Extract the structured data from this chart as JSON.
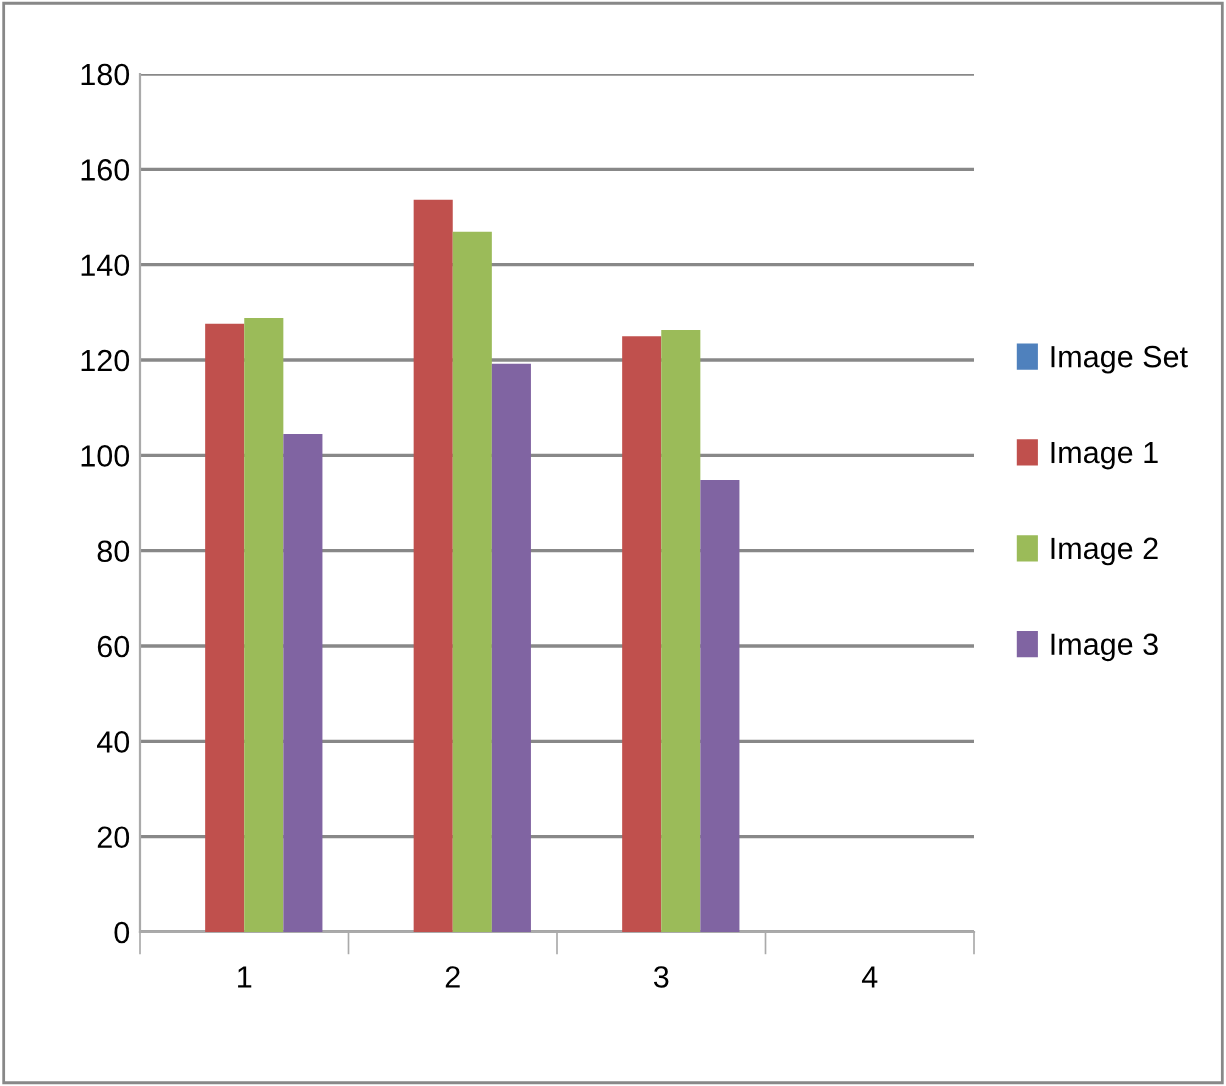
{
  "chart_data": {
    "type": "bar",
    "categories": [
      "1",
      "2",
      "3",
      "4"
    ],
    "series": [
      {
        "name": "Image Set",
        "color": "#4f81bd",
        "values": [
          null,
          null,
          null,
          null
        ]
      },
      {
        "name": "Image 1",
        "color": "#c0504d",
        "values": [
          127.6,
          153.6,
          125.0,
          null
        ]
      },
      {
        "name": "Image 2",
        "color": "#9bbb59",
        "values": [
          128.8,
          146.9,
          126.3,
          null
        ]
      },
      {
        "name": "Image 3",
        "color": "#8064a2",
        "values": [
          104.5,
          119.2,
          94.8,
          null
        ]
      }
    ],
    "ylim": [
      0,
      180
    ],
    "yticks": [
      0,
      20,
      40,
      60,
      80,
      100,
      120,
      140,
      160,
      180
    ],
    "grid": "y",
    "legend": "right"
  }
}
